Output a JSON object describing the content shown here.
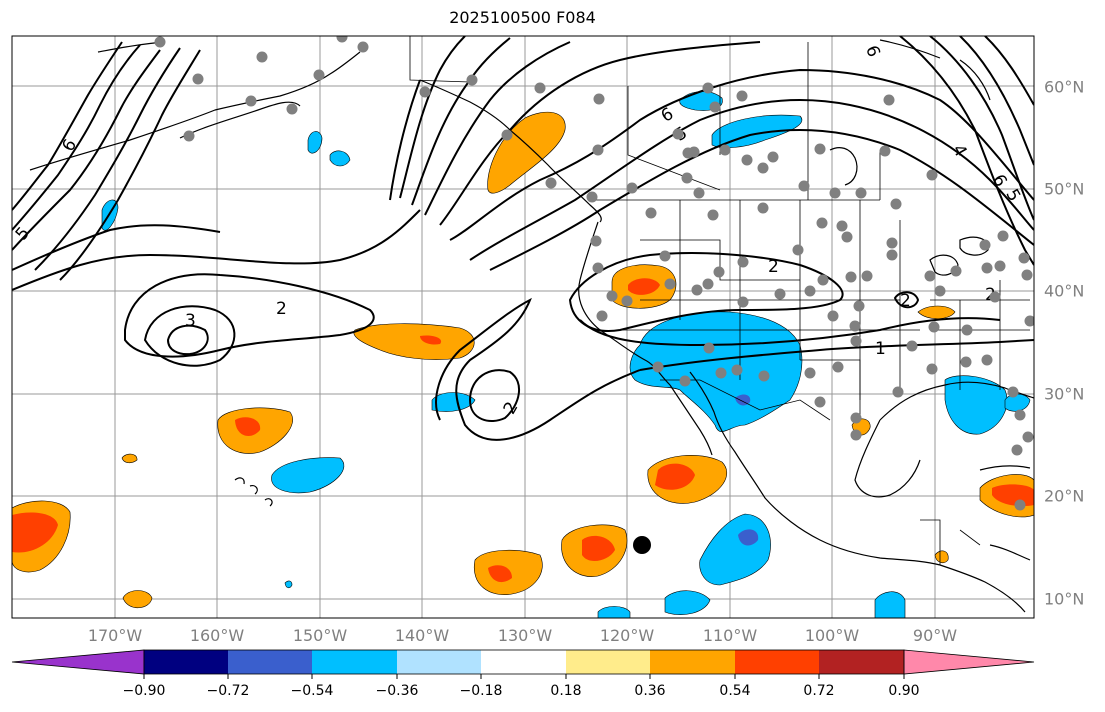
{
  "title": "2025100500 F084",
  "map": {
    "longitude_labels": [
      "170°W",
      "160°W",
      "150°W",
      "140°W",
      "130°W",
      "120°W",
      "110°W",
      "100°W",
      "90°W"
    ],
    "latitude_labels": [
      "60°N",
      "50°N",
      "40°N",
      "30°N",
      "20°N",
      "10°N"
    ],
    "contour_labels": [
      "2",
      "3",
      "2",
      "2",
      "2",
      "1",
      "2",
      "6",
      "5",
      "5",
      "6",
      "6",
      "5",
      "4",
      "6"
    ],
    "station_count": 100
  },
  "colorbar": {
    "tick_labels": [
      "−0.90",
      "−0.72",
      "−0.54",
      "−0.36",
      "−0.18",
      "0.18",
      "0.36",
      "0.54",
      "0.72",
      "0.90"
    ],
    "colors": [
      "#9933cc",
      "#000080",
      "#3a5fcd",
      "#00bfff",
      "#b0e2ff",
      "#ffffff",
      "#ffec8b",
      "#ffa500",
      "#ff4000",
      "#b22222",
      "#ff88aa"
    ],
    "extend": "both"
  }
}
